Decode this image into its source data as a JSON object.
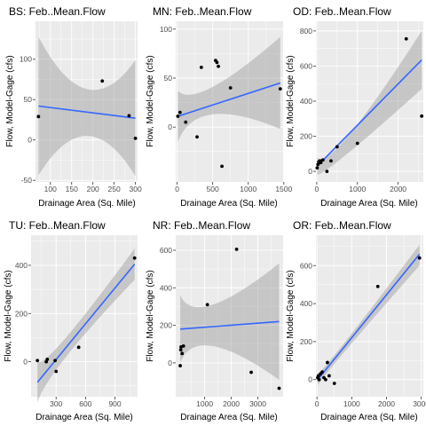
{
  "figure": {
    "xlabel": "Drainage Area (Sq. Mile)",
    "ylabel": "Flow, Model-Gage (cfs)"
  },
  "colors": {
    "panel_background": "#ebebeb",
    "grid": "#ffffff",
    "fit_line": "#3366ff",
    "confidence_band": "#999999",
    "points": "#000000"
  },
  "chart_data": [
    {
      "type": "scatter",
      "title": "BS: Feb..Mean.Flow",
      "xlim": [
        65,
        305
      ],
      "ylim": [
        -52,
        147
      ],
      "xticks": [
        100,
        150,
        200,
        250,
        300
      ],
      "yticks": [
        -50,
        0,
        50,
        100
      ],
      "x": [
        72,
        222,
        285,
        300
      ],
      "y": [
        29,
        73,
        30,
        2
      ],
      "fit": {
        "x": [
          72,
          300
        ],
        "y": [
          42,
          27
        ]
      },
      "band": {
        "x": [
          72,
          186,
          300
        ],
        "upper": [
          128,
          63,
          99
        ],
        "lower": [
          -44,
          5,
          -45
        ]
      },
      "grid": true
    },
    {
      "type": "scatter",
      "title": "MN: Feb..Mean.Flow",
      "xlim": [
        -20,
        1490
      ],
      "ylim": [
        -56,
        108
      ],
      "xticks": [
        0,
        500,
        1000,
        1500
      ],
      "yticks": [
        0,
        50,
        100
      ],
      "x": [
        10,
        40,
        120,
        280,
        340,
        540,
        560,
        580,
        630,
        750,
        1450
      ],
      "y": [
        11,
        15,
        5,
        -10,
        61,
        68,
        66,
        62,
        -40,
        40,
        39
      ],
      "fit": {
        "x": [
          10,
          1450
        ],
        "y": [
          11,
          45
        ]
      },
      "band": {
        "x": [
          10,
          500,
          1450
        ],
        "upper": [
          37,
          41,
          92
        ],
        "lower": [
          -15,
          13,
          -2
        ]
      },
      "grid": true
    },
    {
      "type": "scatter",
      "title": "OD: Feb..Mean.Flow",
      "xlim": [
        -20,
        2620
      ],
      "ylim": [
        -60,
        855
      ],
      "xticks": [
        0,
        1000,
        2000
      ],
      "yticks": [
        0,
        200,
        400,
        600,
        800
      ],
      "x": [
        10,
        30,
        50,
        80,
        100,
        150,
        250,
        350,
        500,
        1000,
        2200,
        2580
      ],
      "y": [
        20,
        40,
        55,
        60,
        50,
        65,
        0,
        60,
        140,
        160,
        755,
        315
      ],
      "fit": {
        "x": [
          10,
          2580
        ],
        "y": [
          30,
          635
        ]
      },
      "band": {
        "x": [
          10,
          800,
          2580
        ],
        "upper": [
          80,
          210,
          800
        ],
        "lower": [
          -20,
          110,
          470
        ]
      },
      "grid": true
    },
    {
      "type": "scatter",
      "title": "TU: Feb..Mean.Flow",
      "xlim": [
        45,
        1130
      ],
      "ylim": [
        -145,
        525
      ],
      "xticks": [
        300,
        600,
        900
      ],
      "yticks": [
        0,
        200,
        400
      ],
      "x": [
        110,
        200,
        210,
        290,
        300,
        530,
        1100
      ],
      "y": [
        5,
        0,
        10,
        5,
        -40,
        60,
        430
      ],
      "fit": {
        "x": [
          110,
          1100
        ],
        "y": [
          -85,
          405
        ]
      },
      "band": {
        "x": [
          110,
          400,
          1100
        ],
        "upper": [
          0,
          100,
          470
        ],
        "lower": [
          -170,
          20,
          340
        ]
      },
      "grid": true
    },
    {
      "type": "scatter",
      "title": "NR: Feb..Mean.Flow",
      "xlim": [
        -90,
        3950
      ],
      "ylim": [
        -180,
        680
      ],
      "xticks": [
        1000,
        2000,
        3000
      ],
      "yticks": [
        0,
        200,
        400,
        600
      ],
      "x": [
        80,
        100,
        110,
        150,
        200,
        1100,
        2200,
        2750,
        3800
      ],
      "y": [
        -15,
        70,
        85,
        50,
        90,
        310,
        605,
        -50,
        -135
      ],
      "fit": {
        "x": [
          80,
          3800
        ],
        "y": [
          180,
          220
        ]
      },
      "band": {
        "x": [
          80,
          1300,
          3800
        ],
        "upper": [
          360,
          310,
          530
        ],
        "lower": [
          0,
          90,
          -90
        ]
      },
      "grid": true
    },
    {
      "type": "scatter",
      "title": "OR: Feb..Mean.Flow",
      "xlim": [
        -30,
        3060
      ],
      "ylim": [
        -90,
        760
      ],
      "xticks": [
        0,
        1000,
        2000,
        3000
      ],
      "yticks": [
        0,
        200,
        400,
        600
      ],
      "x": [
        20,
        40,
        60,
        100,
        150,
        200,
        250,
        300,
        350,
        500,
        1750,
        2950
      ],
      "y": [
        10,
        20,
        0,
        30,
        40,
        10,
        0,
        90,
        20,
        -20,
        490,
        640
      ],
      "fit": {
        "x": [
          20,
          2950
        ],
        "y": [
          0,
          660
        ]
      },
      "band": {
        "x": [
          20,
          900,
          2950
        ],
        "upper": [
          30,
          220,
          710
        ],
        "lower": [
          -30,
          170,
          600
        ]
      },
      "grid": true
    }
  ]
}
